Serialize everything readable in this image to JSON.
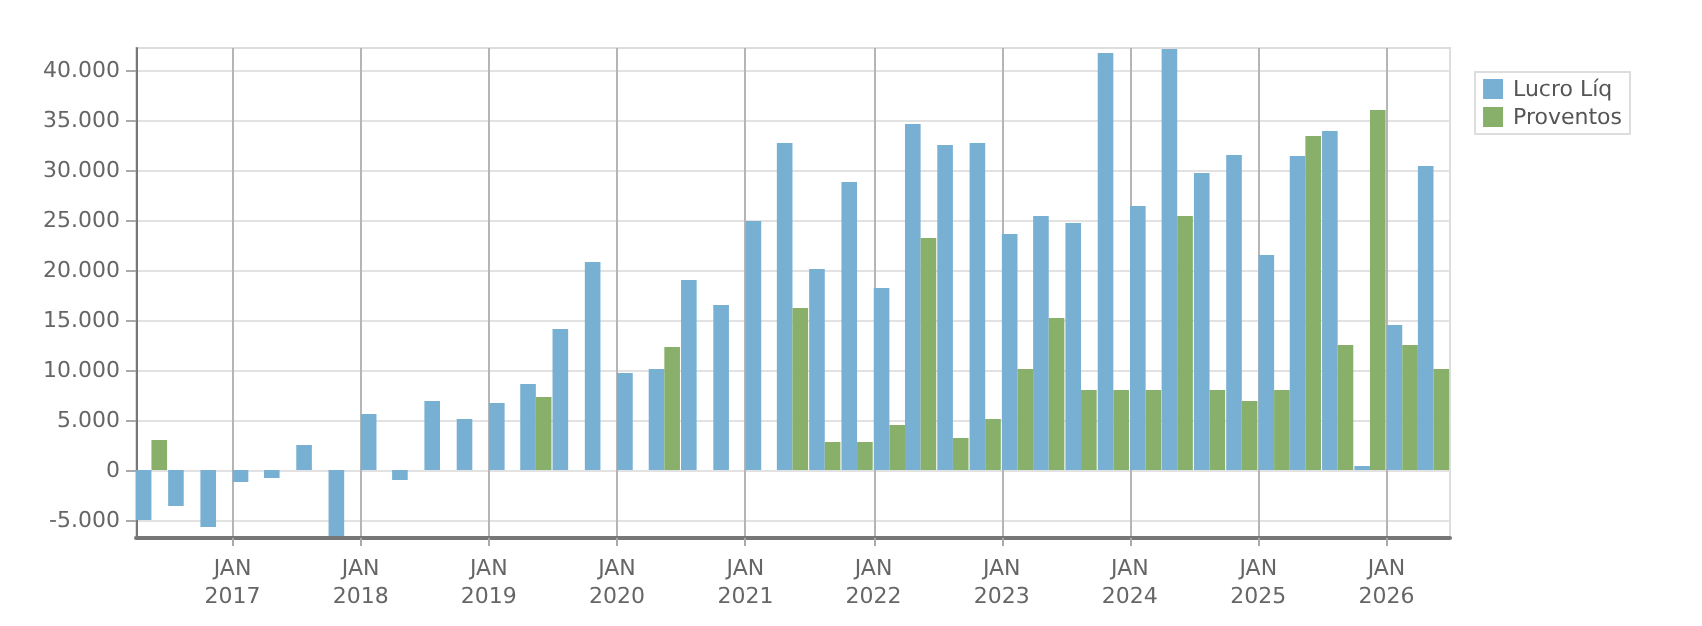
{
  "chart_data": {
    "type": "bar",
    "x": [
      "2016-05-15",
      "2016-08-15",
      "2016-11-15",
      "2017-02-15",
      "2017-05-15",
      "2017-08-15",
      "2017-11-15",
      "2018-02-15",
      "2018-05-15",
      "2018-08-15",
      "2018-11-15",
      "2019-02-15",
      "2019-05-15",
      "2019-08-15",
      "2019-11-15",
      "2020-02-15",
      "2020-05-15",
      "2020-08-15",
      "2020-11-15",
      "2021-02-15",
      "2021-05-15",
      "2021-08-15",
      "2021-11-15",
      "2022-02-15",
      "2022-05-15",
      "2022-08-15",
      "2022-11-15",
      "2023-02-15",
      "2023-05-15",
      "2023-08-15",
      "2023-11-15",
      "2024-02-15",
      "2024-05-15",
      "2024-08-15",
      "2024-11-15",
      "2025-02-15",
      "2025-05-15",
      "2025-08-15",
      "2025-11-15",
      "2026-02-15",
      "2026-05-15"
    ],
    "series": [
      {
        "name": "Lucro Líq",
        "color": "#78b0d3",
        "values": [
          -5000,
          -3600,
          -5700,
          -1200,
          -800,
          2500,
          -6600,
          5600,
          -1000,
          6900,
          5100,
          6700,
          8600,
          14100,
          20800,
          9700,
          10100,
          19000,
          16500,
          24900,
          32700,
          20100,
          28800,
          18200,
          34600,
          32500,
          32700,
          23600,
          25400,
          24700,
          41700,
          26400,
          42100,
          29700,
          31500,
          21500,
          31400,
          33900,
          400,
          14500,
          30400
        ]
      },
      {
        "name": "Proventos",
        "color": "#88b06a",
        "values": [
          3000,
          0,
          0,
          0,
          0,
          0,
          0,
          0,
          0,
          0,
          0,
          0,
          7300,
          0,
          0,
          0,
          12300,
          0,
          0,
          0,
          16200,
          2800,
          2800,
          4500,
          23200,
          3200,
          5100,
          10100,
          15200,
          8000,
          8000,
          8000,
          25400,
          8000,
          6900,
          8000,
          33400,
          12500,
          36000,
          12500,
          10100
        ]
      }
    ],
    "xlim": [
      "2016-04-01",
      "2026-07-01"
    ],
    "xticks": [
      {
        "value": "2017-01-01",
        "label": "JAN\n2017"
      },
      {
        "value": "2018-01-01",
        "label": "JAN\n2018"
      },
      {
        "value": "2019-01-01",
        "label": "JAN\n2019"
      },
      {
        "value": "2020-01-01",
        "label": "JAN\n2020"
      },
      {
        "value": "2021-01-01",
        "label": "JAN\n2021"
      },
      {
        "value": "2022-01-01",
        "label": "JAN\n2022"
      },
      {
        "value": "2023-01-01",
        "label": "JAN\n2023"
      },
      {
        "value": "2024-01-01",
        "label": "JAN\n2024"
      },
      {
        "value": "2025-01-01",
        "label": "JAN\n2025"
      },
      {
        "value": "2026-01-01",
        "label": "JAN\n2026"
      }
    ],
    "ylim": [
      -6800,
      42200
    ],
    "yticks": [
      {
        "value": -5000,
        "label": "-5.000"
      },
      {
        "value": 0,
        "label": "0"
      },
      {
        "value": 5000,
        "label": "5.000"
      },
      {
        "value": 10000,
        "label": "10.000"
      },
      {
        "value": 15000,
        "label": "15.000"
      },
      {
        "value": 20000,
        "label": "20.000"
      },
      {
        "value": 25000,
        "label": "25.000"
      },
      {
        "value": 30000,
        "label": "30.000"
      },
      {
        "value": 35000,
        "label": "35.000"
      },
      {
        "value": 40000,
        "label": "40.000"
      }
    ],
    "grid": true,
    "legend": "top right"
  }
}
